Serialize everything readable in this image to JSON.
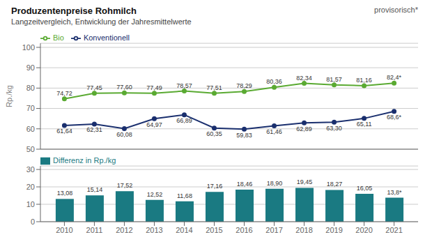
{
  "chart_data": [
    {
      "type": "line",
      "title": "Produzentenpreise Rohmilch",
      "subtitle": "Langzeitvergleich, Entwicklung der Jahresmittelwerte",
      "annotations": [
        "provisorisch*"
      ],
      "ylabel": "Rp./kg",
      "x": [
        2010,
        2011,
        2012,
        2013,
        2014,
        2015,
        2016,
        2017,
        2018,
        2019,
        2020,
        2021
      ],
      "xlim": [
        2009.2,
        2021.8
      ],
      "tick_labels": "y",
      "ylim": [
        50,
        102
      ],
      "yticks": [
        50,
        60,
        70,
        80,
        90,
        100
      ],
      "grid": true,
      "data_labels": true,
      "series": [
        {
          "name": "Bio",
          "color": "#5aaa32",
          "marker": "circle",
          "values": [
            74.72,
            77.45,
            77.6,
            77.49,
            78.57,
            77.51,
            78.29,
            80.36,
            82.34,
            81.57,
            81.16,
            82.4
          ],
          "value_labels": [
            "74,72",
            "77,45",
            "77,60",
            "77,49",
            "78,57",
            "77,51",
            "78,29",
            "80,36",
            "82,34",
            "81,57",
            "81,16",
            "82,4*"
          ]
        },
        {
          "name": "Konventionell",
          "color": "#1a2f6e",
          "marker": "circle",
          "values": [
            61.64,
            62.31,
            60.08,
            64.97,
            66.89,
            60.35,
            59.83,
            61.46,
            62.89,
            63.3,
            65.11,
            68.6
          ],
          "value_labels": [
            "61,64",
            "62,31",
            "60,08",
            "64,97",
            "66,89",
            "60,35",
            "59,83",
            "61,46",
            "62,89",
            "63,30",
            "65,11",
            "68,6*"
          ]
        }
      ]
    },
    {
      "type": "bar",
      "x": [
        2010,
        2011,
        2012,
        2013,
        2014,
        2015,
        2016,
        2017,
        2018,
        2019,
        2020,
        2021
      ],
      "xlim": [
        2009.2,
        2021.8
      ],
      "xticks": [
        2010,
        2011,
        2012,
        2013,
        2014,
        2015,
        2016,
        2017,
        2018,
        2019,
        2020,
        2021
      ],
      "ylim": [
        0,
        32
      ],
      "yticks": [
        0,
        10,
        20,
        30
      ],
      "grid": true,
      "data_labels": true,
      "series": [
        {
          "name": "Differenz in Rp./kg",
          "color": "#1a7a82",
          "values": [
            13.08,
            15.14,
            17.52,
            12.52,
            11.68,
            17.16,
            18.46,
            18.9,
            19.45,
            18.27,
            16.05,
            13.8
          ],
          "value_labels": [
            "13,08",
            "15,14",
            "17,52",
            "12,52",
            "11,68",
            "17,16",
            "18,46",
            "18,90",
            "19,45",
            "18,27",
            "16,05",
            "13,8*"
          ]
        }
      ]
    }
  ]
}
